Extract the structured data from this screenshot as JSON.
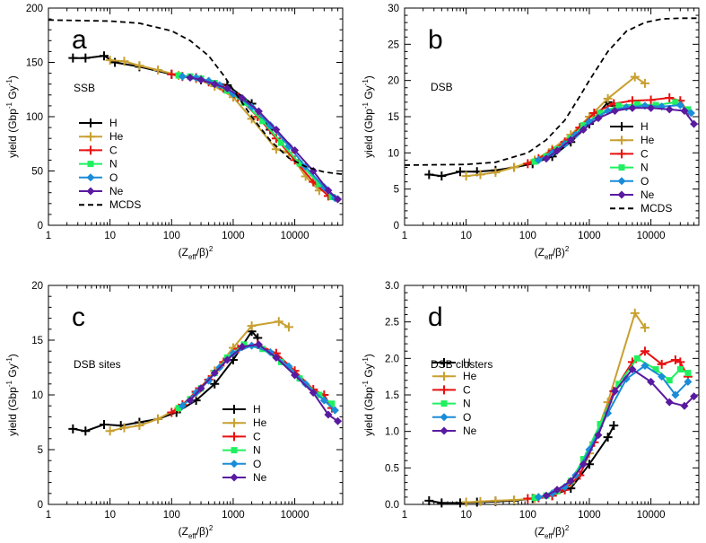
{
  "chart_data": [
    {
      "panel": "a",
      "type": "line",
      "note": "SSB",
      "xlabel_main": "(Z",
      "xlabel_sub": "eff",
      "xlabel_rest": "/β)",
      "xlabel_sup": "2",
      "ylabel_main": "yield (Gbp",
      "ylabel_sup1": "-1",
      "ylabel_mid": " Gy",
      "ylabel_sup2": "-1",
      "ylabel_end": ")",
      "xscale": "log",
      "xlim": [
        1,
        60000
      ],
      "ylim": [
        0,
        200
      ],
      "xticks": [
        1,
        10,
        100,
        1000,
        10000
      ],
      "xtick_labels": [
        "1",
        "10",
        "100",
        "1000",
        "10000"
      ],
      "yticks": [
        0,
        50,
        100,
        150,
        200
      ],
      "ytick_labels": [
        "0",
        "50",
        "100",
        "150",
        "200"
      ],
      "legend_position": "left",
      "series": [
        {
          "name": "H",
          "color": "#000000",
          "marker": "plus",
          "x": [
            2.5,
            4,
            8,
            12,
            30,
            100,
            300,
            800,
            2000,
            4000,
            8000
          ],
          "y": [
            154,
            154,
            156,
            150,
            146,
            139,
            134,
            129,
            112,
            88,
            67
          ]
        },
        {
          "name": "He",
          "color": "#c8a030",
          "marker": "plus",
          "x": [
            10,
            17,
            30,
            60,
            130,
            250,
            500,
            1000,
            2000,
            5000,
            8000,
            15000,
            25000
          ],
          "y": [
            152,
            151,
            147,
            143,
            138,
            135,
            128,
            118,
            98,
            70,
            67,
            45,
            32
          ]
        },
        {
          "name": "C",
          "color": "#e81010",
          "marker": "plus",
          "x": [
            100,
            150,
            250,
            400,
            700,
            1200,
            2500,
            5000,
            10000,
            20000,
            35000
          ],
          "y": [
            139,
            137,
            136,
            132,
            126,
            118,
            100,
            80,
            60,
            40,
            27
          ]
        },
        {
          "name": "N",
          "color": "#20f060",
          "marker": "square",
          "x": [
            130,
            200,
            300,
            500,
            800,
            1500,
            3000,
            6000,
            12000,
            25000,
            40000
          ],
          "y": [
            138,
            137,
            135,
            131,
            124,
            113,
            96,
            76,
            57,
            38,
            26
          ]
        },
        {
          "name": "O",
          "color": "#1a8cd8",
          "marker": "diamond",
          "x": [
            150,
            250,
            400,
            600,
            1000,
            2000,
            4000,
            8000,
            15000,
            30000,
            45000
          ],
          "y": [
            137,
            136,
            133,
            129,
            121,
            109,
            92,
            73,
            54,
            35,
            25
          ]
        },
        {
          "name": "Ne",
          "color": "#5a1aa0",
          "marker": "diamond",
          "x": [
            200,
            300,
            500,
            800,
            1400,
            2600,
            5000,
            10000,
            20000,
            35000,
            50000
          ],
          "y": [
            136,
            134,
            130,
            126,
            117,
            105,
            88,
            69,
            50,
            32,
            24
          ]
        },
        {
          "name": "MCDS",
          "color": "#000000",
          "marker": "none",
          "dash": true,
          "x": [
            1,
            10,
            30,
            100,
            200,
            400,
            700,
            1000,
            2000,
            4000,
            8000,
            15000,
            30000,
            60000
          ],
          "y": [
            189,
            188,
            186,
            179,
            170,
            156,
            138,
            125,
            100,
            78,
            62,
            54,
            49,
            47
          ]
        }
      ]
    },
    {
      "panel": "b",
      "type": "line",
      "note": "DSB",
      "xlabel_main": "(Z",
      "xlabel_sub": "eff",
      "xlabel_rest": "/β)",
      "xlabel_sup": "2",
      "ylabel_main": "yield (Gbp",
      "ylabel_sup1": "-1",
      "ylabel_mid": " Gy",
      "ylabel_sup2": "-1",
      "ylabel_end": ")",
      "xscale": "log",
      "xlim": [
        1,
        60000
      ],
      "ylim": [
        0,
        30
      ],
      "xticks": [
        1,
        10,
        100,
        1000,
        10000
      ],
      "xtick_labels": [
        "1",
        "10",
        "100",
        "1000",
        "10000"
      ],
      "yticks": [
        0,
        5,
        10,
        15,
        20,
        25,
        30
      ],
      "ytick_labels": [
        "0",
        "5",
        "10",
        "15",
        "20",
        "25",
        "30"
      ],
      "legend_position": "right",
      "series": [
        {
          "name": "H",
          "color": "#000000",
          "marker": "plus",
          "x": [
            2.5,
            4,
            8,
            15,
            30,
            60,
            120,
            250,
            500,
            1000,
            2000,
            2500
          ],
          "y": [
            7.0,
            6.8,
            7.4,
            7.4,
            7.6,
            8.0,
            8.5,
            9.5,
            11.5,
            14.0,
            17.0,
            16.5
          ]
        },
        {
          "name": "He",
          "color": "#c8a030",
          "marker": "plus",
          "x": [
            10,
            17,
            30,
            60,
            130,
            250,
            500,
            1000,
            2000,
            5500,
            8000
          ],
          "y": [
            6.8,
            7.0,
            7.3,
            8.0,
            9.0,
            10.5,
            12.5,
            15.0,
            17.5,
            20.5,
            19.6
          ]
        },
        {
          "name": "C",
          "color": "#e81010",
          "marker": "plus",
          "x": [
            100,
            150,
            250,
            400,
            700,
            1200,
            2500,
            5000,
            10000,
            20000,
            30000,
            40000
          ],
          "y": [
            8.5,
            9.2,
            10.3,
            11.5,
            13.5,
            15.5,
            16.8,
            17.2,
            17.3,
            17.6,
            17.2,
            15.6
          ]
        },
        {
          "name": "N",
          "color": "#20f060",
          "marker": "square",
          "x": [
            130,
            200,
            300,
            500,
            800,
            1500,
            3000,
            6000,
            12000,
            25000,
            40000
          ],
          "y": [
            8.8,
            9.5,
            10.5,
            12.0,
            13.8,
            15.5,
            16.5,
            16.7,
            16.6,
            17.0,
            16.0
          ]
        },
        {
          "name": "O",
          "color": "#1a8cd8",
          "marker": "diamond",
          "x": [
            150,
            250,
            400,
            600,
            1000,
            2000,
            4000,
            8000,
            15000,
            30000,
            45000
          ],
          "y": [
            9.0,
            10.0,
            11.2,
            12.5,
            14.3,
            15.8,
            16.3,
            16.5,
            16.4,
            16.6,
            15.5
          ]
        },
        {
          "name": "Ne",
          "color": "#5a1aa0",
          "marker": "diamond",
          "x": [
            200,
            300,
            500,
            800,
            1400,
            2600,
            5000,
            10000,
            20000,
            35000,
            50000
          ],
          "y": [
            9.2,
            10.3,
            11.8,
            13.2,
            14.8,
            15.8,
            16.2,
            16.2,
            16.0,
            15.8,
            14.0
          ]
        },
        {
          "name": "MCDS",
          "color": "#000000",
          "marker": "none",
          "dash": true,
          "x": [
            1,
            10,
            30,
            100,
            200,
            400,
            700,
            1000,
            2000,
            4000,
            8000,
            15000,
            30000,
            60000
          ],
          "y": [
            8.3,
            8.4,
            8.7,
            10.0,
            11.8,
            14.5,
            17.8,
            20.0,
            24.0,
            26.8,
            28.0,
            28.5,
            28.6,
            28.6
          ]
        }
      ]
    },
    {
      "panel": "c",
      "type": "line",
      "note": "DSB sites",
      "xlabel_main": "(Z",
      "xlabel_sub": "eff",
      "xlabel_rest": "/β)",
      "xlabel_sup": "2",
      "ylabel_main": "yield (Gbp",
      "ylabel_sup1": "-1",
      "ylabel_mid": " Gy",
      "ylabel_sup2": "-1",
      "ylabel_end": ")",
      "xscale": "log",
      "xlim": [
        1,
        60000
      ],
      "ylim": [
        0,
        20
      ],
      "xticks": [
        1,
        10,
        100,
        1000,
        10000
      ],
      "xtick_labels": [
        "1",
        "10",
        "100",
        "1000",
        "10000"
      ],
      "yticks": [
        0,
        5,
        10,
        15,
        20
      ],
      "ytick_labels": [
        "0",
        "5",
        "10",
        "15",
        "20"
      ],
      "legend_position": "center",
      "series": [
        {
          "name": "H",
          "color": "#000000",
          "marker": "plus",
          "x": [
            2.5,
            4,
            8,
            15,
            30,
            60,
            120,
            250,
            500,
            1000,
            2000,
            2500
          ],
          "y": [
            6.9,
            6.7,
            7.3,
            7.2,
            7.5,
            7.8,
            8.4,
            9.5,
            11.0,
            13.2,
            15.8,
            15.2
          ]
        },
        {
          "name": "He",
          "color": "#c8a030",
          "marker": "plus",
          "x": [
            10,
            17,
            30,
            60,
            130,
            250,
            500,
            1000,
            2000,
            5500,
            8000
          ],
          "y": [
            6.7,
            7.0,
            7.2,
            7.8,
            8.8,
            10.2,
            12.2,
            14.3,
            16.3,
            16.7,
            16.2
          ]
        },
        {
          "name": "C",
          "color": "#e81010",
          "marker": "plus",
          "x": [
            100,
            150,
            250,
            400,
            700,
            1200,
            2500,
            5000,
            10000,
            20000,
            30000,
            40000
          ],
          "y": [
            8.4,
            9.1,
            10.3,
            11.4,
            13.0,
            14.2,
            14.6,
            13.8,
            12.2,
            10.5,
            10.0,
            8.8
          ]
        },
        {
          "name": "N",
          "color": "#20f060",
          "marker": "square",
          "x": [
            130,
            200,
            300,
            500,
            800,
            1500,
            3000,
            6000,
            12000,
            25000,
            40000
          ],
          "y": [
            8.8,
            9.6,
            10.6,
            12.0,
            13.4,
            14.6,
            14.2,
            13.0,
            11.5,
            10.0,
            9.2
          ]
        },
        {
          "name": "O",
          "color": "#1a8cd8",
          "marker": "diamond",
          "x": [
            150,
            250,
            400,
            600,
            1000,
            2000,
            4000,
            8000,
            15000,
            30000,
            45000
          ],
          "y": [
            9.0,
            10.2,
            11.3,
            12.5,
            13.8,
            14.5,
            13.9,
            12.6,
            11.0,
            9.5,
            8.6
          ]
        },
        {
          "name": "Ne",
          "color": "#5a1aa0",
          "marker": "diamond",
          "x": [
            200,
            300,
            500,
            800,
            1400,
            2600,
            5000,
            10000,
            20000,
            35000,
            50000
          ],
          "y": [
            9.5,
            10.6,
            12.0,
            13.2,
            14.4,
            14.6,
            13.4,
            11.8,
            10.2,
            8.2,
            7.6
          ]
        }
      ]
    },
    {
      "panel": "d",
      "type": "line",
      "note": "DSB clusters",
      "xlabel_main": "(Z",
      "xlabel_sub": "eff",
      "xlabel_rest": "/β)",
      "xlabel_sup": "2",
      "ylabel_main": "yield (Gbp",
      "ylabel_sup1": "-1",
      "ylabel_mid": " Gy",
      "ylabel_sup2": "-1",
      "ylabel_end": ")",
      "xscale": "log",
      "xlim": [
        1,
        60000
      ],
      "ylim": [
        0,
        3.0
      ],
      "xticks": [
        1,
        10,
        100,
        1000,
        10000
      ],
      "xtick_labels": [
        "1",
        "10",
        "100",
        "1000",
        "10000"
      ],
      "yticks": [
        0,
        0.5,
        1.0,
        1.5,
        2.0,
        2.5,
        3.0
      ],
      "ytick_labels": [
        "0.0",
        "0.5",
        "1.0",
        "1.5",
        "2.0",
        "2.5",
        "3.0"
      ],
      "legend_position": "top-left",
      "series": [
        {
          "name": "H",
          "color": "#000000",
          "marker": "plus",
          "x": [
            2.5,
            4,
            8,
            15,
            30,
            60,
            120,
            250,
            500,
            1000,
            2000,
            2500
          ],
          "y": [
            0.05,
            0.02,
            0.02,
            0.03,
            0.04,
            0.05,
            0.08,
            0.12,
            0.22,
            0.55,
            0.92,
            1.08
          ]
        },
        {
          "name": "He",
          "color": "#c8a030",
          "marker": "plus",
          "x": [
            10,
            17,
            30,
            60,
            130,
            250,
            500,
            1000,
            2000,
            5500,
            8000
          ],
          "y": [
            0.03,
            0.04,
            0.05,
            0.06,
            0.08,
            0.14,
            0.3,
            0.7,
            1.4,
            2.62,
            2.42
          ]
        },
        {
          "name": "C",
          "color": "#e81010",
          "marker": "plus",
          "x": [
            100,
            150,
            250,
            400,
            700,
            1200,
            2500,
            5000,
            8000,
            15000,
            25000,
            30000,
            40000
          ],
          "y": [
            0.08,
            0.09,
            0.12,
            0.2,
            0.4,
            0.85,
            1.55,
            1.95,
            2.1,
            1.92,
            1.98,
            1.95,
            1.75
          ]
        },
        {
          "name": "N",
          "color": "#20f060",
          "marker": "square",
          "x": [
            130,
            200,
            300,
            500,
            800,
            1500,
            3000,
            6000,
            12000,
            20000,
            30000,
            40000
          ],
          "y": [
            0.09,
            0.12,
            0.18,
            0.32,
            0.62,
            1.1,
            1.65,
            2.0,
            1.85,
            1.7,
            1.85,
            1.8
          ]
        },
        {
          "name": "O",
          "color": "#1a8cd8",
          "marker": "diamond",
          "x": [
            150,
            250,
            400,
            600,
            1000,
            2000,
            4000,
            8000,
            15000,
            25000,
            40000
          ],
          "y": [
            0.1,
            0.15,
            0.24,
            0.4,
            0.75,
            1.25,
            1.72,
            1.9,
            1.75,
            1.5,
            1.68
          ]
        },
        {
          "name": "Ne",
          "color": "#5a1aa0",
          "marker": "diamond",
          "x": [
            200,
            300,
            500,
            800,
            1400,
            2600,
            5000,
            10000,
            20000,
            35000,
            50000
          ],
          "y": [
            0.12,
            0.2,
            0.32,
            0.55,
            0.95,
            1.55,
            1.85,
            1.68,
            1.4,
            1.35,
            1.48
          ]
        }
      ]
    }
  ]
}
